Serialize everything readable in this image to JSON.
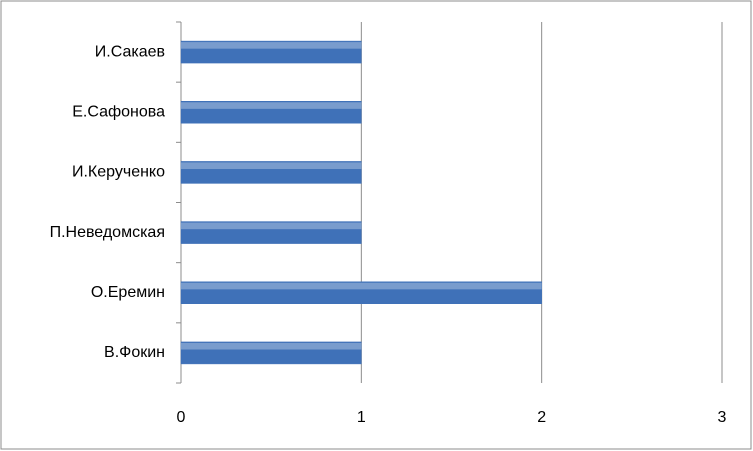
{
  "chart_data": {
    "type": "bar",
    "orientation": "horizontal",
    "categories": [
      "И.Сакаев",
      "Е.Сафонова",
      "И.Керученко",
      "П.Неведомская",
      "О.Еремин",
      "В.Фокин"
    ],
    "values": [
      1,
      1,
      1,
      1,
      2,
      1
    ],
    "color": "#3f71b8",
    "xlim": [
      0,
      3
    ],
    "xticks": [
      0,
      1,
      2,
      3
    ],
    "grid": true
  }
}
